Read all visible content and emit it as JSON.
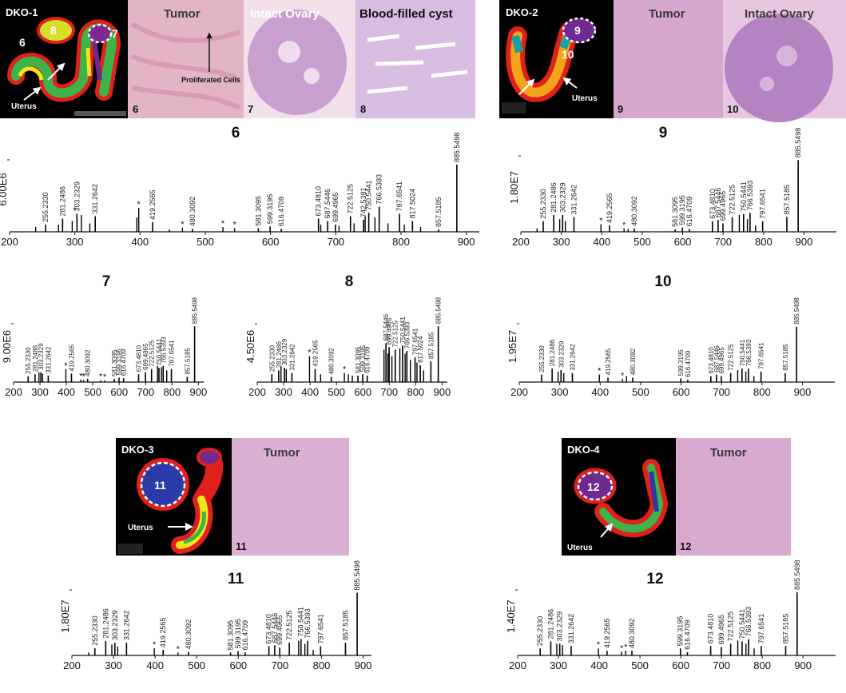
{
  "images": {
    "dko1": {
      "label": "DKO-1",
      "regions": [
        "6",
        "8",
        "7"
      ],
      "uterus": "Uterus"
    },
    "panel_6": {
      "title": "Tumor",
      "annotation": "Proliferated Cells",
      "number": "6"
    },
    "panel_7": {
      "title": "Intact Ovary",
      "number": "7"
    },
    "panel_8": {
      "title": "Blood-filled cyst",
      "number": "8"
    },
    "dko2": {
      "label": "DKO-2",
      "regions": [
        "9",
        "10"
      ],
      "uterus": "Uterus"
    },
    "panel_9": {
      "title": "Tumor",
      "number": "9"
    },
    "panel_10": {
      "title": "Intact Ovary",
      "number": "10"
    },
    "dko3": {
      "label": "DKO-3",
      "regions": [
        "11"
      ],
      "uterus": "Uterus"
    },
    "panel_11": {
      "title": "Tumor",
      "number": "11"
    },
    "dko4": {
      "label": "DKO-4",
      "regions": [
        "12"
      ],
      "uterus": "Uterus"
    },
    "panel_12": {
      "title": "Tumor",
      "number": "12"
    }
  },
  "chart_data": [
    {
      "type": "spectrum",
      "title": "6",
      "color": "#000000",
      "xlim": [
        200,
        920
      ],
      "xticks": [
        200,
        300,
        400,
        500,
        600,
        700,
        800,
        900
      ],
      "ylim": [
        0,
        6000000
      ],
      "yticks": [
        {
          "value": 6000000,
          "label": "6.00E6"
        }
      ],
      "peaks": {
        "x": [
          255.233,
          281.2486,
          303.2329,
          331.2642,
          419.2565,
          480.3092,
          581.3095,
          599.3195,
          616.4709,
          673.481,
          687.5446,
          699.4965,
          722.5125,
          742.5391,
          750.5441,
          766.5393,
          797.6541,
          817.5024,
          857.5185,
          885.5498
        ],
        "x_labels": [
          "255.2330",
          "281.2486",
          "303.2329",
          "331.2642",
          "419.2565",
          "480.3092",
          "581.3095",
          "599.3195",
          "616.4709",
          "673.4810",
          "687.5446",
          "699.4965",
          "722.5125",
          "742.5391",
          "750.5441",
          "766.5393",
          "797.6541",
          "817.5024",
          "857.5185",
          "885.5498"
        ],
        "values": [
          600000,
          1100000,
          1500000,
          1300000,
          800000,
          250000,
          300000,
          450000,
          250000,
          1100000,
          900000,
          600000,
          1300000,
          1000000,
          1600000,
          2100000,
          1500000,
          900000,
          200000,
          5600000
        ]
      },
      "minor_peaks": {
        "x": [
          240,
          275,
          296,
          310,
          323,
          395,
          398,
          445,
          465,
          527,
          545,
          677,
          705,
          728,
          745,
          760,
          780,
          805,
          830
        ],
        "values": [
          400000,
          600000,
          900000,
          1400000,
          700000,
          1200000,
          2000000,
          200000,
          350000,
          400000,
          300000,
          600000,
          500000,
          700000,
          1300000,
          1200000,
          700000,
          600000,
          400000
        ]
      },
      "annotation": "*",
      "annotation_x": [
        300,
        398,
        465,
        527,
        545
      ]
    },
    {
      "type": "spectrum",
      "title": "9",
      "color": "#000000",
      "xlim": [
        200,
        980
      ],
      "xticks": [
        200,
        300,
        400,
        500,
        600,
        700,
        800,
        900
      ],
      "ylim": [
        0,
        18000000
      ],
      "yticks": [
        {
          "value": 18000000,
          "label": "1.80E7"
        }
      ],
      "peaks": {
        "x": [
          255.233,
          281.2486,
          303.2329,
          331.2642,
          419.2565,
          480.3092,
          581.3095,
          599.3195,
          616.4709,
          673.481,
          687.5446,
          699.4965,
          722.5125,
          750.5441,
          766.5393,
          797.6541,
          857.5185,
          885.5498
        ],
        "x_labels": [
          "255.2330",
          "281.2486",
          "303.2329",
          "331.2642",
          "419.2565",
          "480.3092",
          "581.3095",
          "599.3195",
          "616.4709",
          "673.4810",
          "687.5446",
          "699.4965",
          "722.5125",
          "750.5441",
          "766.5393",
          "797.6541",
          "857.5185",
          "885.5498"
        ],
        "values": [
          2500000,
          4000000,
          4000000,
          3500000,
          1500000,
          800000,
          600000,
          1000000,
          700000,
          2500000,
          2800000,
          2000000,
          3500000,
          4200000,
          4500000,
          2500000,
          3500000,
          17000000
        ]
      },
      "minor_peaks": {
        "x": [
          240,
          296,
          310,
          398,
          455,
          465,
          740,
          760,
          780
        ],
        "values": [
          800000,
          3000000,
          2500000,
          1800000,
          800000,
          700000,
          4000000,
          3000000,
          1500000
        ]
      },
      "annotation": "*",
      "annotation_x": [
        398,
        455
      ]
    },
    {
      "type": "spectrum",
      "title": "7",
      "color": "#000000",
      "xlim": [
        200,
        920
      ],
      "xticks": [
        200,
        300,
        400,
        500,
        600,
        700,
        800,
        900
      ],
      "ylim": [
        0,
        9000000
      ],
      "yticks": [
        {
          "value": 9000000,
          "label": "9.00E6"
        }
      ],
      "peaks": {
        "x": [
          255.233,
          281.2486,
          303.2329,
          331.2642,
          419.2565,
          480.3092,
          581.3095,
          599.3195,
          616.4709,
          673.481,
          699.4965,
          722.5125,
          750.5441,
          766.5393,
          797.6541,
          857.5185,
          885.5498
        ],
        "x_labels": [
          "255.2330",
          "281.2486",
          "303.2329",
          "331.2642",
          "419.2565",
          "480.3092",
          "581.3095",
          "599.3195",
          "616.4709",
          "673.4810",
          "699.4965",
          "722.5125",
          "750.5441",
          "766.5393",
          "797.6541",
          "857.5185",
          "885.5498"
        ],
        "values": [
          900000,
          1200000,
          1500000,
          1000000,
          1300000,
          500000,
          500000,
          700000,
          600000,
          1200000,
          1500000,
          2000000,
          2200000,
          2500000,
          2000000,
          800000,
          8600000
        ]
      },
      "minor_peaks": {
        "x": [
          296,
          310,
          398,
          455,
          465,
          530,
          545,
          745,
          760,
          780
        ],
        "values": [
          1500000,
          1300000,
          2000000,
          400000,
          300000,
          300000,
          250000,
          2500000,
          2300000,
          1800000
        ]
      },
      "annotation": "*",
      "annotation_x": [
        398,
        455,
        465,
        530,
        545
      ]
    },
    {
      "type": "spectrum",
      "title": "8",
      "color": "#000000",
      "xlim": [
        200,
        920
      ],
      "xticks": [
        200,
        300,
        400,
        500,
        600,
        700,
        800,
        900
      ],
      "ylim": [
        0,
        4500000
      ],
      "yticks": [
        {
          "value": 4500000,
          "label": "4.50E6"
        }
      ],
      "peaks": {
        "x": [
          255.233,
          281.2486,
          303.2329,
          331.2642,
          419.2565,
          480.3092,
          581.3095,
          599.3195,
          616.4709,
          687.5446,
          699.4965,
          722.5125,
          750.5441,
          766.5393,
          797.6541,
          817.5024,
          857.5185,
          885.5498
        ],
        "x_labels": [
          "255.2330",
          "281.2486",
          "303.2329",
          "331.2642",
          "419.2565",
          "480.3092",
          "581.3095",
          "599.3195",
          "616.4709",
          "687.5446",
          "699.4965",
          "722.5125",
          "750.5441",
          "766.5393",
          "797.6541",
          "817.5024",
          "857.5185",
          "885.5498"
        ],
        "values": [
          600000,
          900000,
          1100000,
          700000,
          1000000,
          400000,
          500000,
          600000,
          500000,
          3000000,
          2700000,
          2500000,
          2800000,
          2400000,
          1900000,
          1300000,
          1600000,
          4300000
        ]
      },
      "minor_peaks": {
        "x": [
          290,
          310,
          398,
          440,
          530,
          545,
          560,
          680,
          695,
          710,
          740,
          760,
          780,
          805,
          830
        ],
        "values": [
          1200000,
          1000000,
          2000000,
          600000,
          700000,
          600000,
          500000,
          2500000,
          2200000,
          2000000,
          2600000,
          2200000,
          1700000,
          1500000,
          900000
        ]
      },
      "annotation": "*",
      "annotation_x": [
        398,
        530
      ]
    },
    {
      "type": "spectrum",
      "title": "10",
      "color": "#000000",
      "xlim": [
        200,
        980
      ],
      "xticks": [
        200,
        300,
        400,
        500,
        600,
        700,
        800,
        900
      ],
      "ylim": [
        0,
        19500000
      ],
      "yticks": [
        {
          "value": 19500000,
          "label": "1.95E7"
        }
      ],
      "peaks": {
        "x": [
          255.233,
          281.2486,
          303.2329,
          331.2642,
          419.2565,
          480.3092,
          599.3195,
          616.4709,
          673.481,
          687.5446,
          699.4965,
          722.5125,
          750.5441,
          766.5393,
          797.6541,
          857.5185,
          885.5498
        ],
        "x_labels": [
          "255.2330",
          "281.2486",
          "303.2329",
          "331.2642",
          "419.2565",
          "480.3092",
          "599.3195",
          "616.4709",
          "673.4810",
          "687.5446",
          "699.4965",
          "722.5125",
          "750.5441",
          "766.5393",
          "797.6541",
          "857.5185",
          "885.5498"
        ],
        "values": [
          2500000,
          4500000,
          4000000,
          3000000,
          1500000,
          1500000,
          1200000,
          800000,
          2000000,
          2500000,
          2000000,
          3000000,
          4500000,
          4500000,
          3500000,
          3000000,
          18500000
        ]
      },
      "minor_peaks": {
        "x": [
          296,
          310,
          398,
          455,
          465,
          740,
          760,
          780
        ],
        "values": [
          3500000,
          3000000,
          2500000,
          1000000,
          2000000,
          4000000,
          3500000,
          2000000
        ]
      },
      "annotation": "*",
      "annotation_x": [
        398,
        455
      ]
    },
    {
      "type": "spectrum",
      "title": "11",
      "color": "#000000",
      "xlim": [
        200,
        920
      ],
      "xticks": [
        200,
        300,
        400,
        500,
        600,
        700,
        800,
        900
      ],
      "ylim": [
        0,
        18000000
      ],
      "yticks": [
        {
          "value": 18000000,
          "label": "1.80E7"
        }
      ],
      "peaks": {
        "x": [
          255.233,
          281.2486,
          303.2329,
          331.2642,
          419.2565,
          480.3092,
          581.3095,
          599.3195,
          616.4709,
          673.481,
          687.5446,
          699.4965,
          722.5125,
          750.5441,
          766.5393,
          797.6541,
          857.5185,
          885.5498
        ],
        "x_labels": [
          "255.2330",
          "281.2486",
          "303.2329",
          "331.2642",
          "419.2565",
          "480.3092",
          "581.3095",
          "599.3195",
          "616.4709",
          "673.4810",
          "687.5446",
          "699.4965",
          "722.5125",
          "750.5441",
          "766.5393",
          "797.6541",
          "857.5185",
          "885.5498"
        ],
        "values": [
          2000000,
          4000000,
          3500000,
          3500000,
          1500000,
          1000000,
          800000,
          1200000,
          800000,
          2500000,
          2800000,
          2200000,
          3500000,
          4500000,
          4000000,
          2500000,
          3500000,
          17200000
        ]
      },
      "minor_peaks": {
        "x": [
          240,
          296,
          310,
          398,
          455,
          745,
          760,
          780
        ],
        "values": [
          800000,
          3000000,
          2500000,
          2000000,
          800000,
          4000000,
          3200000,
          1500000
        ]
      },
      "annotation": "*",
      "annotation_x": [
        398,
        455
      ]
    },
    {
      "type": "spectrum",
      "title": "12",
      "color": "#000000",
      "xlim": [
        200,
        980
      ],
      "xticks": [
        200,
        300,
        400,
        500,
        600,
        700,
        800,
        900
      ],
      "ylim": [
        0,
        14000000
      ],
      "yticks": [
        {
          "value": 14000000,
          "label": "1.40E7"
        }
      ],
      "peaks": {
        "x": [
          255.233,
          281.2486,
          303.2329,
          331.2642,
          419.2565,
          480.3092,
          599.3195,
          616.4709,
          673.481,
          699.4965,
          722.5125,
          750.5441,
          766.5393,
          797.6541,
          857.5185,
          885.5498
        ],
        "x_labels": [
          "255.2330",
          "281.2486",
          "303.2329",
          "331.2642",
          "419.2565",
          "480.3092",
          "599.3195",
          "616.4709",
          "673.4810",
          "699.4965",
          "722.5125",
          "750.5441",
          "766.5393",
          "797.6541",
          "857.5185",
          "885.5498"
        ],
        "values": [
          1500000,
          3000000,
          2500000,
          2000000,
          1000000,
          1000000,
          1500000,
          700000,
          2000000,
          1800000,
          2500000,
          3000000,
          3500000,
          2000000,
          2000000,
          13500000
        ]
      },
      "minor_peaks": {
        "x": [
          296,
          310,
          398,
          455,
          465,
          740,
          760,
          780
        ],
        "values": [
          2500000,
          2200000,
          1500000,
          800000,
          1000000,
          3200000,
          2500000,
          1500000
        ]
      },
      "annotation": "*",
      "annotation_x": [
        398,
        455,
        465
      ]
    }
  ]
}
